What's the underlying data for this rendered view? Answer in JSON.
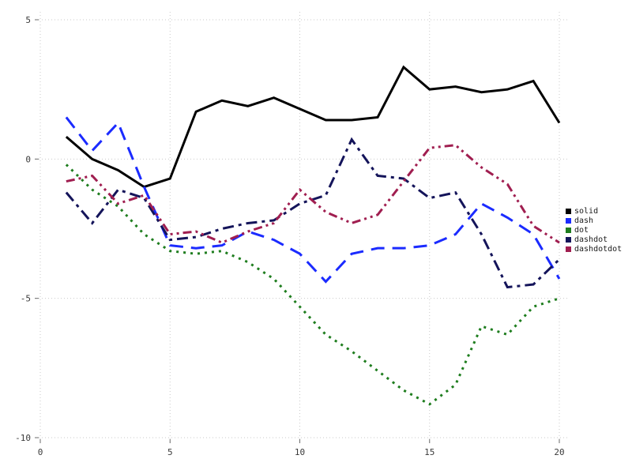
{
  "chart_data": {
    "type": "line",
    "title": "",
    "xlabel": "",
    "ylabel": "",
    "xlim": [
      0,
      20
    ],
    "ylim": [
      -10,
      5
    ],
    "xticks": {
      "values": [
        0,
        5,
        10,
        15,
        20
      ],
      "labels": [
        "0",
        "5",
        "10",
        "15",
        "20"
      ]
    },
    "yticks": {
      "values": [
        5,
        0,
        -5,
        -10
      ],
      "labels": [
        "5",
        "0",
        "-5",
        "-10"
      ]
    },
    "grid": true,
    "grid_color": "#c9c9c9",
    "legend_position": "right",
    "x": [
      1,
      2,
      3,
      4,
      5,
      6,
      7,
      8,
      9,
      10,
      11,
      12,
      13,
      14,
      15,
      16,
      17,
      18,
      19,
      20
    ],
    "series": [
      {
        "name": "solid",
        "style": "solid",
        "color": "#000000",
        "values": [
          0.8,
          0.0,
          -0.4,
          -1.0,
          -0.7,
          1.7,
          2.1,
          1.9,
          2.2,
          1.8,
          1.4,
          1.4,
          1.5,
          3.3,
          2.5,
          2.6,
          2.4,
          2.5,
          2.8,
          1.3
        ]
      },
      {
        "name": "dash",
        "style": "dash",
        "color": "#1b2bff",
        "values": [
          1.5,
          0.3,
          1.3,
          -1.0,
          -3.1,
          -3.2,
          -3.1,
          -2.6,
          -2.9,
          -3.4,
          -4.4,
          -3.4,
          -3.2,
          -3.2,
          -3.1,
          -2.7,
          -1.6,
          -2.1,
          -2.7,
          -4.3
        ]
      },
      {
        "name": "dot",
        "style": "dot",
        "color": "#1e7d1e",
        "values": [
          -0.2,
          -1.1,
          -1.7,
          -2.7,
          -3.3,
          -3.4,
          -3.3,
          -3.7,
          -4.3,
          -5.3,
          -6.3,
          -6.9,
          -7.6,
          -8.3,
          -8.8,
          -8.1,
          -6.0,
          -6.3,
          -5.3,
          -5.0
        ]
      },
      {
        "name": "dashdot",
        "style": "dashdot",
        "color": "#14145a",
        "values": [
          -1.2,
          -2.3,
          -1.1,
          -1.4,
          -2.9,
          -2.8,
          -2.5,
          -2.3,
          -2.2,
          -1.6,
          -1.3,
          0.7,
          -0.6,
          -0.7,
          -1.4,
          -1.2,
          -2.7,
          -4.6,
          -4.5,
          -3.6
        ]
      },
      {
        "name": "dashdotdot",
        "style": "dashdotdot",
        "color": "#a01e50",
        "values": [
          -0.8,
          -0.6,
          -1.6,
          -1.3,
          -2.7,
          -2.6,
          -3.0,
          -2.6,
          -2.3,
          -1.1,
          -1.9,
          -2.3,
          -2.0,
          -0.8,
          0.4,
          0.5,
          -0.3,
          -0.9,
          -2.4,
          -3.0
        ]
      }
    ],
    "legend": {
      "entries": [
        {
          "label": "solid"
        },
        {
          "label": "dash"
        },
        {
          "label": "dot"
        },
        {
          "label": "dashdot"
        },
        {
          "label": "dashdotdot"
        }
      ]
    }
  }
}
